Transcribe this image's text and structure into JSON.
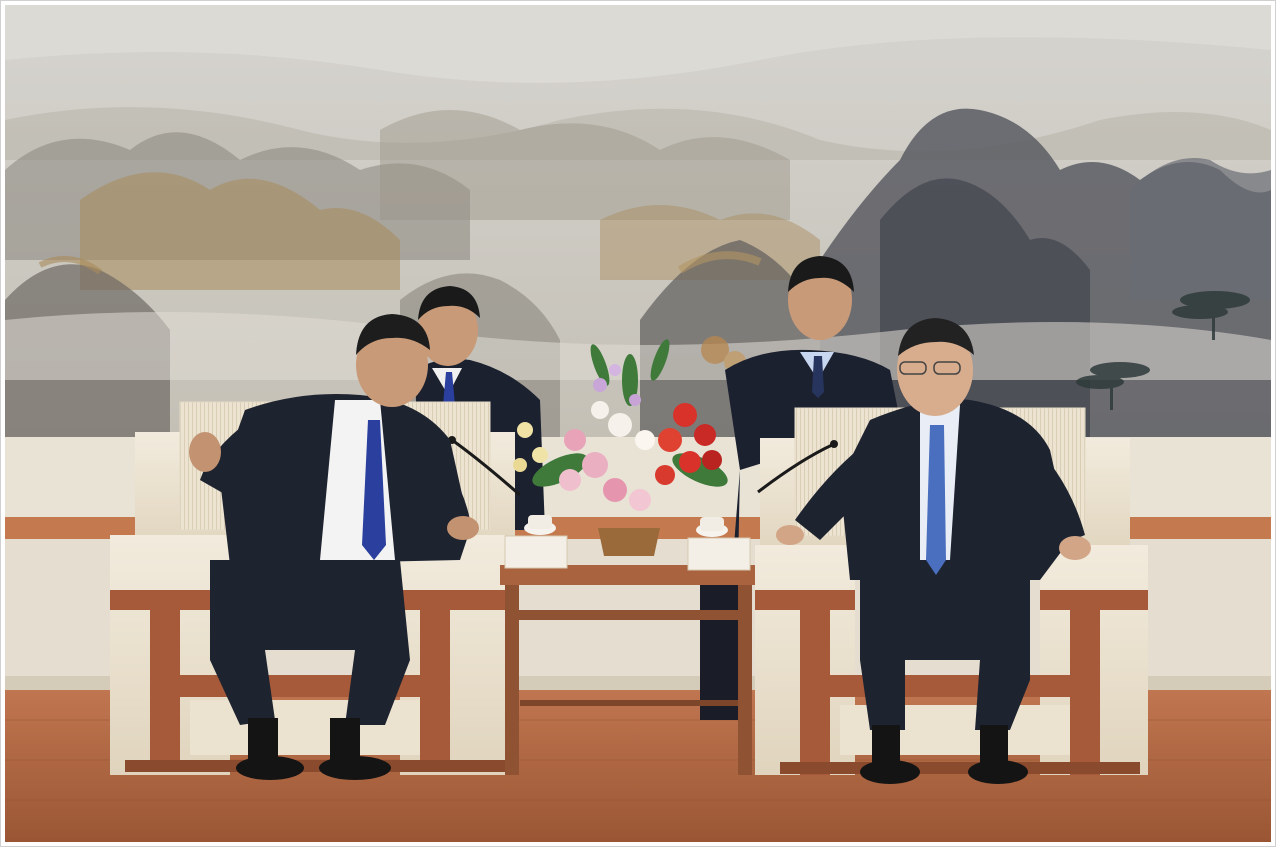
{
  "photo": {
    "nameplates": {
      "left": "",
      "right": ""
    },
    "colors": {
      "wall_painting_sky": "#cfcdc6",
      "mountain_ink": "#5a5c63",
      "mountain_ochre": "#a88a5a",
      "wainscot": "#e9e3d6",
      "wood_trim": "#a65a3a",
      "floor": "#b0683f",
      "armchair_fabric": "#ede4d3",
      "suit_dark": "#1e2330",
      "tie_blue": "#2a3f9e",
      "flowers_red": "#d8322a",
      "flowers_pink": "#e8a3b8"
    }
  }
}
